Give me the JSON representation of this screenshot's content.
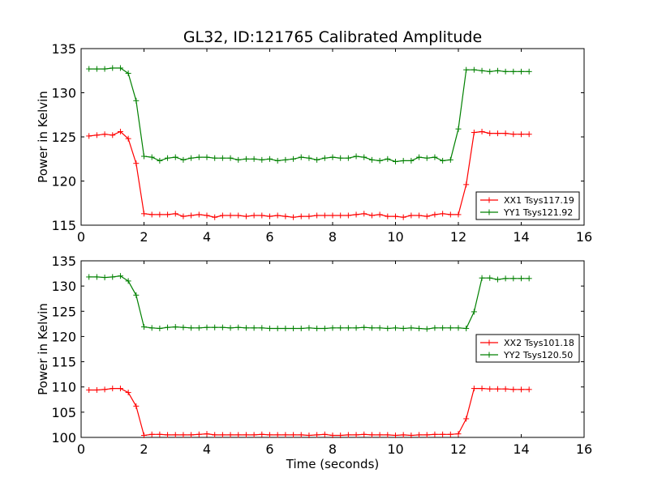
{
  "figure": {
    "title": "GL32, ID:121765 Calibrated Amplitude"
  },
  "chart_data": [
    {
      "type": "line",
      "title": "GL32, ID:121765 Calibrated Amplitude",
      "xlabel": "",
      "ylabel": "Power in Kelvin",
      "xlim": [
        0,
        16
      ],
      "ylim": [
        115,
        135
      ],
      "xticks": [
        0,
        2,
        4,
        6,
        8,
        10,
        12,
        14,
        16
      ],
      "yticks": [
        115,
        120,
        125,
        130,
        135
      ],
      "grid": false,
      "legend_position": "lower-right",
      "x": [
        0.25,
        0.5,
        0.75,
        1.0,
        1.25,
        1.5,
        1.75,
        2.0,
        2.25,
        2.5,
        2.75,
        3.0,
        3.25,
        3.5,
        3.75,
        4.0,
        4.25,
        4.5,
        4.75,
        5.0,
        5.25,
        5.5,
        5.75,
        6.0,
        6.25,
        6.5,
        6.75,
        7.0,
        7.25,
        7.5,
        7.75,
        8.0,
        8.25,
        8.5,
        8.75,
        9.0,
        9.25,
        9.5,
        9.75,
        10.0,
        10.25,
        10.5,
        10.75,
        11.0,
        11.25,
        11.5,
        11.75,
        12.0,
        12.25,
        12.5,
        12.75,
        13.0,
        13.25,
        13.5,
        13.75,
        14.0,
        14.25
      ],
      "series": [
        {
          "name": "XX1 Tsys117.19",
          "color": "#ff0000",
          "values": [
            125.1,
            125.2,
            125.3,
            125.2,
            125.6,
            124.8,
            122.0,
            116.3,
            116.2,
            116.2,
            116.2,
            116.3,
            116.0,
            116.1,
            116.2,
            116.1,
            115.9,
            116.1,
            116.1,
            116.1,
            116.0,
            116.1,
            116.1,
            116.0,
            116.1,
            116.0,
            115.9,
            116.0,
            116.0,
            116.1,
            116.1,
            116.1,
            116.1,
            116.1,
            116.2,
            116.3,
            116.1,
            116.2,
            116.0,
            116.0,
            115.9,
            116.1,
            116.1,
            116.0,
            116.2,
            116.3,
            116.2,
            116.2,
            119.6,
            125.5,
            125.6,
            125.4,
            125.4,
            125.4,
            125.3,
            125.3,
            125.3
          ]
        },
        {
          "name": "YY1 Tsys121.92",
          "color": "#008000",
          "values": [
            132.7,
            132.7,
            132.7,
            132.8,
            132.8,
            132.2,
            129.1,
            122.8,
            122.7,
            122.3,
            122.6,
            122.7,
            122.4,
            122.6,
            122.7,
            122.7,
            122.6,
            122.6,
            122.6,
            122.4,
            122.5,
            122.5,
            122.4,
            122.5,
            122.3,
            122.4,
            122.5,
            122.7,
            122.6,
            122.4,
            122.6,
            122.7,
            122.6,
            122.6,
            122.8,
            122.7,
            122.4,
            122.3,
            122.5,
            122.2,
            122.3,
            122.3,
            122.7,
            122.6,
            122.7,
            122.3,
            122.4,
            125.9,
            132.6,
            132.6,
            132.5,
            132.4,
            132.5,
            132.4,
            132.4,
            132.4,
            132.4
          ]
        }
      ]
    },
    {
      "type": "line",
      "title": "",
      "xlabel": "Time (seconds)",
      "ylabel": "Power in Kelvin",
      "xlim": [
        0,
        16
      ],
      "ylim": [
        100,
        135
      ],
      "xticks": [
        0,
        2,
        4,
        6,
        8,
        10,
        12,
        14,
        16
      ],
      "yticks": [
        100,
        105,
        110,
        115,
        120,
        125,
        130,
        135
      ],
      "grid": false,
      "legend_position": "center-right",
      "x": [
        0.25,
        0.5,
        0.75,
        1.0,
        1.25,
        1.5,
        1.75,
        2.0,
        2.25,
        2.5,
        2.75,
        3.0,
        3.25,
        3.5,
        3.75,
        4.0,
        4.25,
        4.5,
        4.75,
        5.0,
        5.25,
        5.5,
        5.75,
        6.0,
        6.25,
        6.5,
        6.75,
        7.0,
        7.25,
        7.5,
        7.75,
        8.0,
        8.25,
        8.5,
        8.75,
        9.0,
        9.25,
        9.5,
        9.75,
        10.0,
        10.25,
        10.5,
        10.75,
        11.0,
        11.25,
        11.5,
        11.75,
        12.0,
        12.25,
        12.5,
        12.75,
        13.0,
        13.25,
        13.5,
        13.75,
        14.0,
        14.25
      ],
      "series": [
        {
          "name": "XX2 Tsys101.18",
          "color": "#ff0000",
          "values": [
            109.4,
            109.4,
            109.5,
            109.7,
            109.7,
            108.9,
            106.2,
            100.4,
            100.6,
            100.6,
            100.5,
            100.5,
            100.5,
            100.5,
            100.6,
            100.7,
            100.5,
            100.5,
            100.5,
            100.5,
            100.5,
            100.5,
            100.6,
            100.5,
            100.5,
            100.5,
            100.5,
            100.5,
            100.4,
            100.5,
            100.6,
            100.4,
            100.4,
            100.5,
            100.5,
            100.6,
            100.5,
            100.5,
            100.5,
            100.4,
            100.5,
            100.4,
            100.5,
            100.5,
            100.6,
            100.6,
            100.6,
            100.7,
            103.7,
            109.7,
            109.7,
            109.6,
            109.6,
            109.6,
            109.5,
            109.5,
            109.5
          ]
        },
        {
          "name": "YY2 Tsys120.50",
          "color": "#008000",
          "values": [
            131.8,
            131.8,
            131.7,
            131.8,
            132.0,
            131.0,
            128.2,
            121.9,
            121.7,
            121.6,
            121.8,
            121.9,
            121.8,
            121.7,
            121.7,
            121.8,
            121.8,
            121.8,
            121.7,
            121.8,
            121.7,
            121.7,
            121.7,
            121.6,
            121.6,
            121.6,
            121.6,
            121.6,
            121.7,
            121.6,
            121.6,
            121.7,
            121.7,
            121.7,
            121.7,
            121.8,
            121.7,
            121.7,
            121.6,
            121.7,
            121.6,
            121.7,
            121.6,
            121.5,
            121.7,
            121.7,
            121.7,
            121.7,
            121.6,
            124.9,
            131.6,
            131.6,
            131.3,
            131.5,
            131.5,
            131.5,
            131.5
          ]
        }
      ]
    }
  ]
}
